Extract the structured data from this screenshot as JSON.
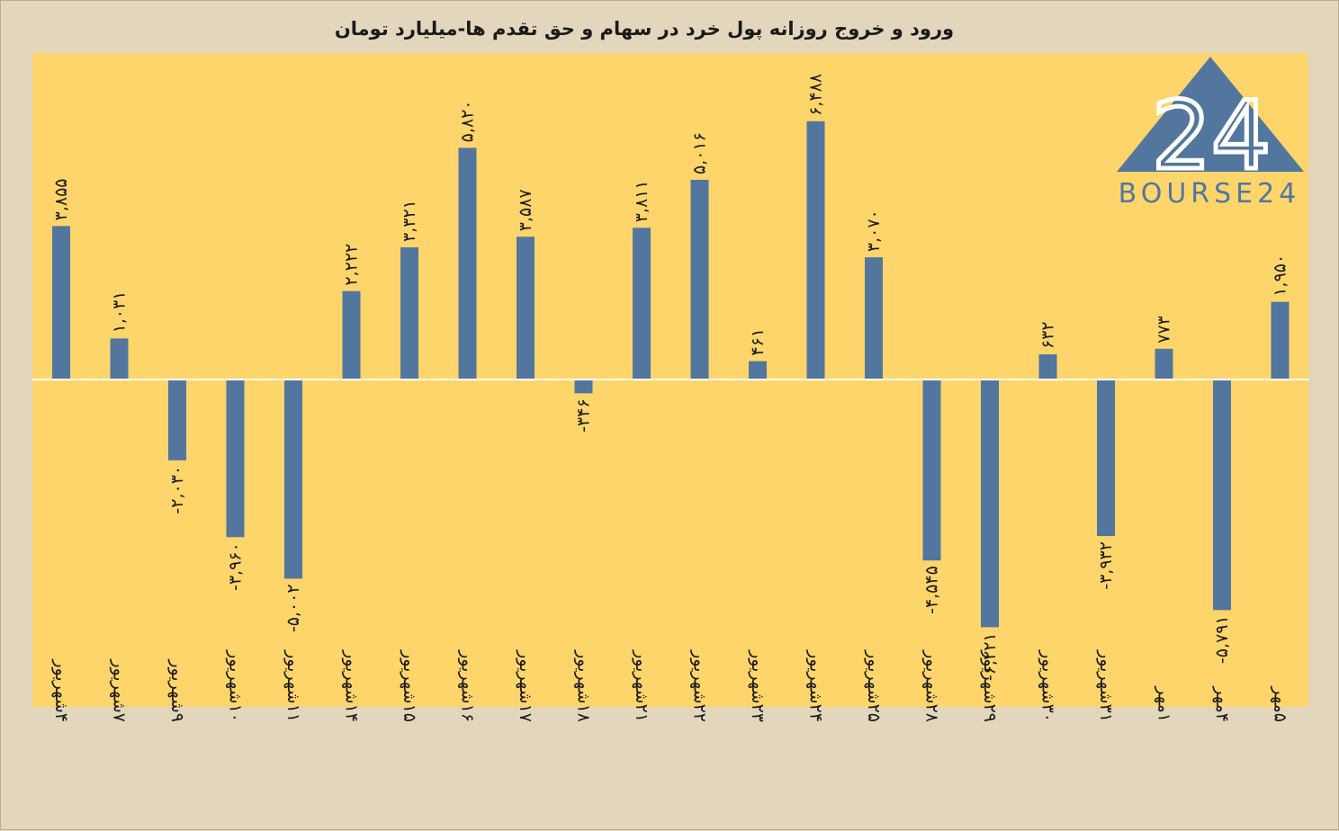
{
  "colors": {
    "background": "#e2d6bd",
    "plot_area": "#fdd56a",
    "bar": "#53769f",
    "zero_line": "#ffffff",
    "logo": "#53769f"
  },
  "logo": {
    "mark": "24",
    "text": "BOURSE24"
  },
  "chart_data": {
    "type": "bar",
    "title": "ورود و خروج روزانه پول خرد در سهام و حق تقدم ها-میلیارد تومان",
    "xlabel": "",
    "ylabel": "",
    "ylim": [
      -8200,
      8200
    ],
    "grid": false,
    "legend": "none",
    "categories": [
      "۴شهریور",
      "۷شهریور",
      "۹شهریور",
      "۱۰شهریور",
      "۱۱شهریور",
      "۱۴شهریور",
      "۱۵شهریور",
      "۱۶شهریور",
      "۱۷شهریور",
      "۱۸شهریور",
      "۲۱شهریور",
      "۲۲شهریور",
      "۲۳شهریور",
      "۲۴شهریور",
      "۲۵شهریور",
      "۲۸شهریور",
      "۲۹شهریور",
      "۳۰شهریور",
      "۳۱شهریور",
      "۱مهر",
      "۴مهر",
      "۵مهر"
    ],
    "values": [
      3855,
      1031,
      -2030,
      -3960,
      -5002,
      2222,
      3321,
      5820,
      3587,
      -346,
      3811,
      5016,
      461,
      6488,
      3070,
      -4545,
      -6221,
      632,
      -3932,
      773,
      -5791,
      1950
    ],
    "data_labels": [
      "۳,۸۵۵",
      "۱,۰۳۱",
      "-۲,۰۳۰",
      "-۳,۹۶۰",
      "-۵,۰۰۲",
      "۲,۲۲۲",
      "۳,۳۲۱",
      "۵,۸۲۰",
      "۳,۵۸۷",
      "-۳۴۶",
      "۳,۸۱۱",
      "۵,۰۱۶",
      "۴۶۱",
      "۶,۴۸۸",
      "۳,۰۷۰",
      "-۴,۵۴۵",
      "-۶,۲۲۱",
      "۶۳۲",
      "-۳,۹۳۲",
      "۷۷۳",
      "-۵,۷۹۱",
      "۱,۹۵۰"
    ]
  }
}
